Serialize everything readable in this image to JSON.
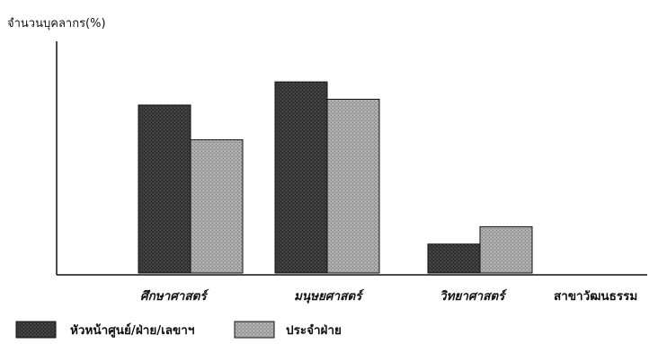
{
  "chart_data": {
    "type": "bar",
    "ylabel": "จำนวนบุคลากร(%)",
    "xlabel": "สาขาวัฒนธรรม",
    "categories": [
      "ศึกษาศาสตร์",
      "มนุษยศาสตร์",
      "วิทยาศาสตร์"
    ],
    "series": [
      {
        "name": "หัวหน้าศูนย์/ฝ่าย/เลขาฯ",
        "values": [
          29,
          33,
          5
        ],
        "color": "#3a3a3a"
      },
      {
        "name": "ประจำฝ่าย",
        "values": [
          23,
          30,
          8
        ],
        "color": "#a6a6a6"
      }
    ],
    "ylim": [
      0,
      40
    ],
    "grid": false,
    "legend_position": "bottom-left"
  }
}
